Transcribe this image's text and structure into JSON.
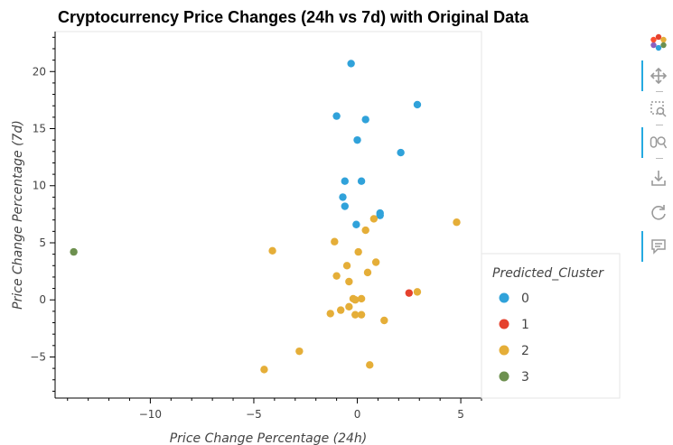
{
  "chart_data": {
    "type": "scatter",
    "title": "Cryptocurrency Price Changes (24h vs 7d) with Original Data",
    "xlabel": "Price Change Percentage (24h)",
    "ylabel": "Price Change Percentage (7d)",
    "xlim": [
      -14.6,
      6.0
    ],
    "ylim": [
      -8.6,
      23.5
    ],
    "xticks": [
      -10,
      -5,
      0,
      5
    ],
    "yticks": [
      -5,
      0,
      5,
      10,
      15,
      20
    ],
    "grid": false,
    "legend": {
      "title": "Predicted_Cluster",
      "placement": "bottom-right"
    },
    "series": [
      {
        "name": "0",
        "color": "#30a2da",
        "points": [
          [
            -0.3,
            20.7
          ],
          [
            2.9,
            17.1
          ],
          [
            -1.0,
            16.1
          ],
          [
            0.4,
            15.8
          ],
          [
            0.0,
            14.0
          ],
          [
            2.1,
            12.9
          ],
          [
            -0.6,
            10.4
          ],
          [
            0.2,
            10.4
          ],
          [
            -0.7,
            9.0
          ],
          [
            -0.6,
            8.2
          ],
          [
            1.1,
            7.6
          ],
          [
            1.1,
            7.4
          ],
          [
            -0.05,
            6.6
          ]
        ]
      },
      {
        "name": "1",
        "color": "#e5412d",
        "points": [
          [
            2.5,
            0.6
          ]
        ]
      },
      {
        "name": "2",
        "color": "#e5ae38",
        "points": [
          [
            4.8,
            6.8
          ],
          [
            0.8,
            7.1
          ],
          [
            0.4,
            6.1
          ],
          [
            -1.1,
            5.1
          ],
          [
            -4.1,
            4.3
          ],
          [
            0.05,
            4.2
          ],
          [
            0.9,
            3.3
          ],
          [
            -0.5,
            3.0
          ],
          [
            0.5,
            2.4
          ],
          [
            -1.0,
            2.1
          ],
          [
            -0.4,
            1.6
          ],
          [
            2.9,
            0.7
          ],
          [
            -0.2,
            0.1
          ],
          [
            0.2,
            0.1
          ],
          [
            -0.1,
            0.0
          ],
          [
            -0.4,
            -0.6
          ],
          [
            -0.8,
            -0.9
          ],
          [
            -1.3,
            -1.2
          ],
          [
            -0.1,
            -1.3
          ],
          [
            0.2,
            -1.3
          ],
          [
            1.3,
            -1.8
          ],
          [
            -2.8,
            -4.5
          ],
          [
            -4.5,
            -6.1
          ],
          [
            0.6,
            -5.7
          ]
        ]
      },
      {
        "name": "3",
        "color": "#6d904f",
        "points": [
          [
            -13.7,
            4.2
          ]
        ]
      }
    ]
  },
  "toolbar": {
    "tools": [
      "bokeh-logo-icon",
      "pan-icon",
      "box-zoom-icon",
      "wheel-zoom-icon",
      "save-icon",
      "reset-icon",
      "hover-icon"
    ]
  }
}
